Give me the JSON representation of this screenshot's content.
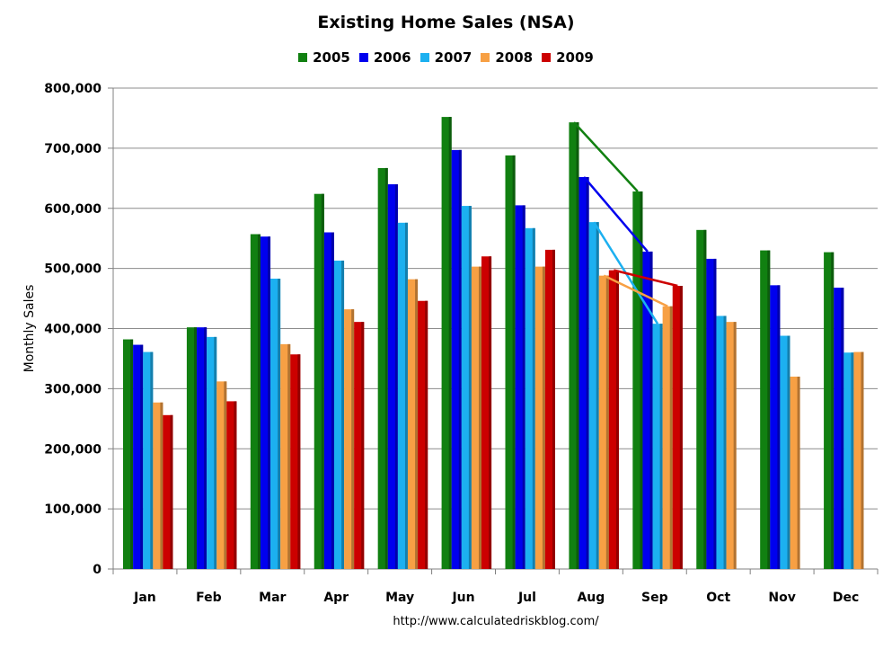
{
  "chart_data": {
    "type": "bar",
    "title": "Existing Home Sales (NSA)",
    "ylabel": "Monthly Sales",
    "xlabel": "",
    "ylim": [
      0,
      800000
    ],
    "yticks": [
      0,
      100000,
      200000,
      300000,
      400000,
      500000,
      600000,
      700000,
      800000
    ],
    "ytick_labels": [
      "0",
      "100,000",
      "200,000",
      "300,000",
      "400,000",
      "500,000",
      "600,000",
      "700,000",
      "800,000"
    ],
    "grid": true,
    "legend_position": "top-center",
    "categories": [
      "Jan",
      "Feb",
      "Mar",
      "Apr",
      "May",
      "Jun",
      "Jul",
      "Aug",
      "Sep",
      "Oct",
      "Nov",
      "Dec"
    ],
    "series": [
      {
        "name": "2005",
        "color": "#118011",
        "values": [
          382000,
          402000,
          557000,
          624000,
          667000,
          752000,
          688000,
          743000,
          628000,
          564000,
          530000,
          527000
        ]
      },
      {
        "name": "2006",
        "color": "#0000ee",
        "values": [
          373000,
          402000,
          553000,
          560000,
          640000,
          697000,
          605000,
          652000,
          528000,
          516000,
          472000,
          468000
        ]
      },
      {
        "name": "2007",
        "color": "#1cb0f0",
        "values": [
          361000,
          386000,
          483000,
          513000,
          576000,
          604000,
          567000,
          577000,
          408000,
          421000,
          388000,
          360000
        ]
      },
      {
        "name": "2008",
        "color": "#f7a044",
        "values": [
          277000,
          312000,
          374000,
          432000,
          482000,
          503000,
          503000,
          488000,
          437000,
          411000,
          320000,
          361000
        ]
      },
      {
        "name": "2009",
        "color": "#cc0000",
        "values": [
          256000,
          279000,
          357000,
          411000,
          446000,
          520000,
          531000,
          497000,
          471000,
          null,
          null,
          null
        ]
      }
    ],
    "trend_lines": [
      {
        "series": "2005",
        "from": "Aug",
        "to": "Sep",
        "values": [
          743000,
          628000
        ]
      },
      {
        "series": "2006",
        "from": "Aug",
        "to": "Sep",
        "values": [
          652000,
          528000
        ]
      },
      {
        "series": "2007",
        "from": "Aug",
        "to": "Sep",
        "values": [
          577000,
          408000
        ]
      },
      {
        "series": "2008",
        "from": "Aug",
        "to": "Sep",
        "values": [
          488000,
          437000
        ]
      },
      {
        "series": "2009",
        "from": "Aug",
        "to": "Sep",
        "values": [
          497000,
          471000
        ]
      }
    ],
    "source_text": "http://www.calculatedriskblog.com/"
  }
}
